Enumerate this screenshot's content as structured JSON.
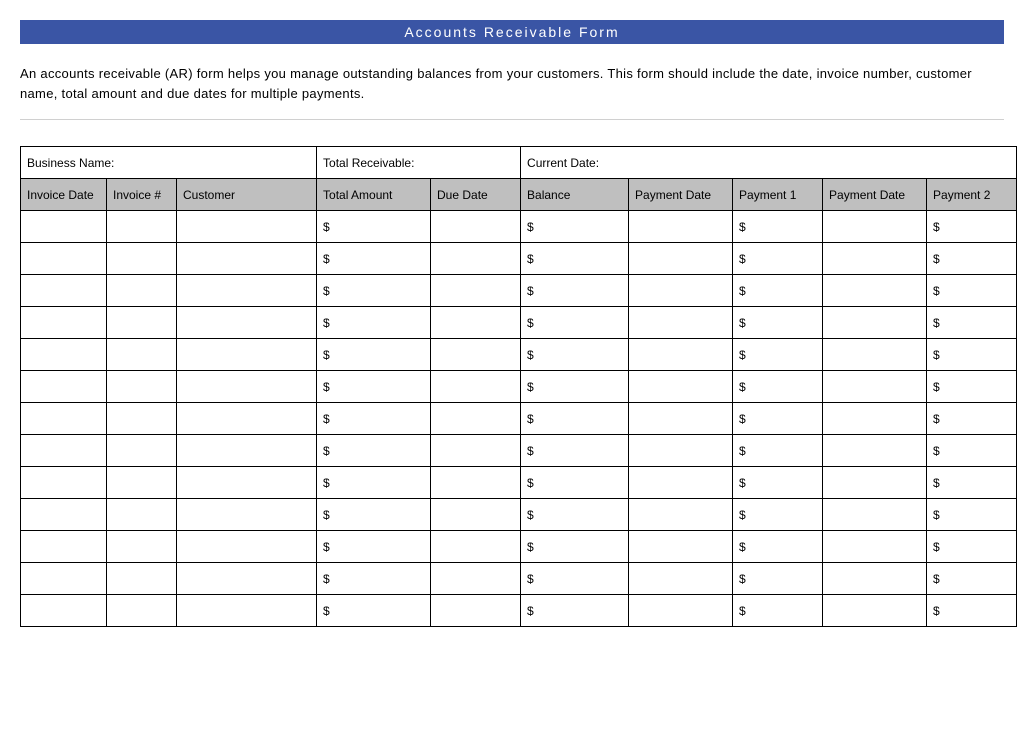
{
  "title": "Accounts  Receivable  Form",
  "description": "An accounts receivable (AR) form helps you manage outstanding balances from your customers. This form should include the date, invoice number, customer name, total amount and due dates for multiple payments.",
  "info_labels": {
    "business_name": "Business Name:",
    "total_receivable": "Total Receivable:",
    "current_date": "Current Date:"
  },
  "columns": [
    "Invoice Date",
    "Invoice #",
    "Customer",
    "Total Amount",
    "Due Date",
    "Balance",
    "Payment Date",
    "Payment 1",
    "Payment Date",
    "Payment 2"
  ],
  "currency_symbol": "$",
  "currency_columns": [
    3,
    5,
    7,
    9
  ],
  "row_count": 13,
  "styling": {
    "title_bar_bg": "#3a55a5",
    "title_bar_color": "#ffffff",
    "header_bg": "#bfbfbf",
    "border_color": "#000000",
    "page_bg": "#ffffff",
    "hr_color": "#d0d0d0",
    "title_fontsize": 14,
    "body_fontsize": 12,
    "description_fontsize": 13
  }
}
